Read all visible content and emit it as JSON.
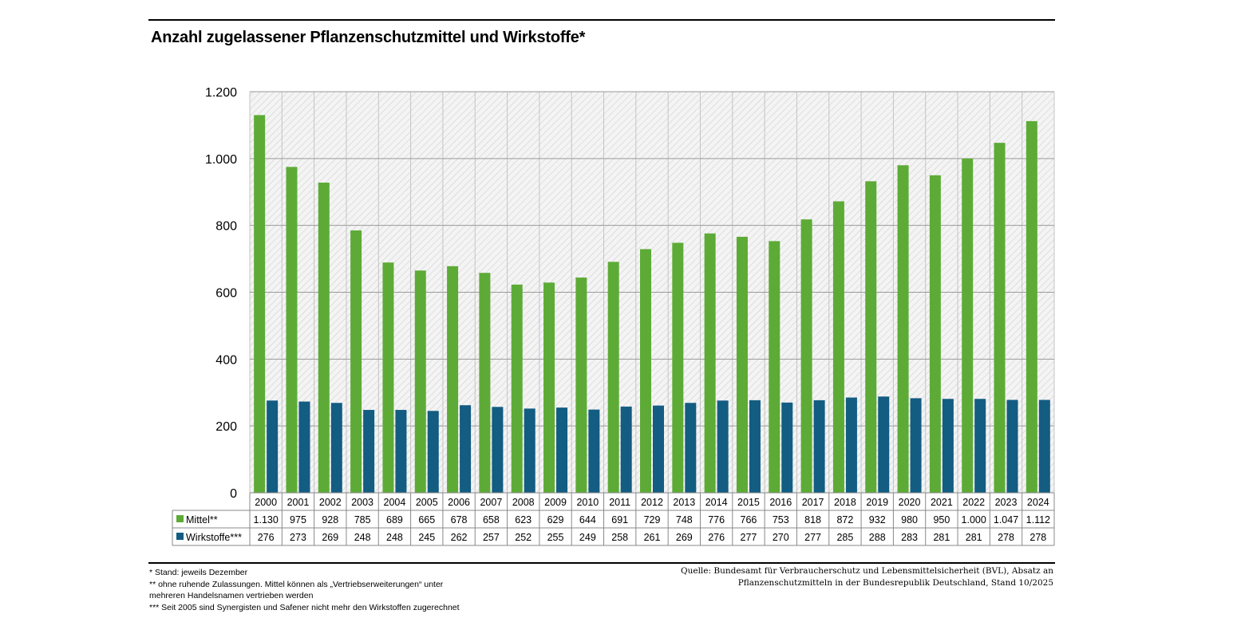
{
  "title": "Anzahl zugelassener Pflanzenschutzmittel und Wirkstoffe*",
  "colors": {
    "mittel": "#5dab36",
    "wirkstoffe": "#135c82",
    "grid": "#9a9a9a"
  },
  "chart_data": {
    "type": "bar",
    "categories": [
      "2000",
      "2001",
      "2002",
      "2003",
      "2004",
      "2005",
      "2006",
      "2007",
      "2008",
      "2009",
      "2010",
      "2011",
      "2012",
      "2013",
      "2014",
      "2015",
      "2016",
      "2017",
      "2018",
      "2019",
      "2020",
      "2021",
      "2022",
      "2023",
      "2024"
    ],
    "series": [
      {
        "name": "Mittel**",
        "color": "#5dab36",
        "values": [
          1130,
          975,
          928,
          785,
          689,
          665,
          678,
          658,
          623,
          629,
          644,
          691,
          729,
          748,
          776,
          766,
          753,
          818,
          872,
          932,
          980,
          950,
          1000,
          1047,
          1112
        ],
        "labels": [
          "1.130",
          "975",
          "928",
          "785",
          "689",
          "665",
          "678",
          "658",
          "623",
          "629",
          "644",
          "691",
          "729",
          "748",
          "776",
          "766",
          "753",
          "818",
          "872",
          "932",
          "980",
          "950",
          "1.000",
          "1.047",
          "1.112"
        ]
      },
      {
        "name": "Wirkstoffe***",
        "color": "#135c82",
        "values": [
          276,
          273,
          269,
          248,
          248,
          245,
          262,
          257,
          252,
          255,
          249,
          258,
          261,
          269,
          276,
          277,
          270,
          277,
          285,
          288,
          283,
          281,
          281,
          278,
          278
        ],
        "labels": [
          "276",
          "273",
          "269",
          "248",
          "248",
          "245",
          "262",
          "257",
          "252",
          "255",
          "249",
          "258",
          "261",
          "269",
          "276",
          "277",
          "270",
          "277",
          "285",
          "288",
          "283",
          "281",
          "281",
          "278",
          "278"
        ]
      }
    ],
    "ylim": [
      0,
      1200
    ],
    "yticks": [
      0,
      200,
      400,
      600,
      800,
      1000,
      1200
    ],
    "ytick_labels": [
      "0",
      "200",
      "400",
      "600",
      "800",
      "1.000",
      "1.200"
    ],
    "grid": true,
    "legend": "table-below"
  },
  "footnotes": [
    "* Stand: jeweils Dezember",
    "** ohne ruhende Zulassungen. Mittel können als „Vertriebserweiterungen“ unter",
    "mehreren Handelsnamen vertrieben werden",
    "*** Seit 2005 sind Synergisten und Safener nicht mehr den Wirkstoffen zugerechnet"
  ],
  "source": [
    "Quelle: Bundesamt für Verbraucherschutz und Lebensmittelsicherheit (BVL), Absatz an",
    "Pflanzenschutzmitteln in der Bundesrepublik Deutschland, Stand 10/2025"
  ]
}
